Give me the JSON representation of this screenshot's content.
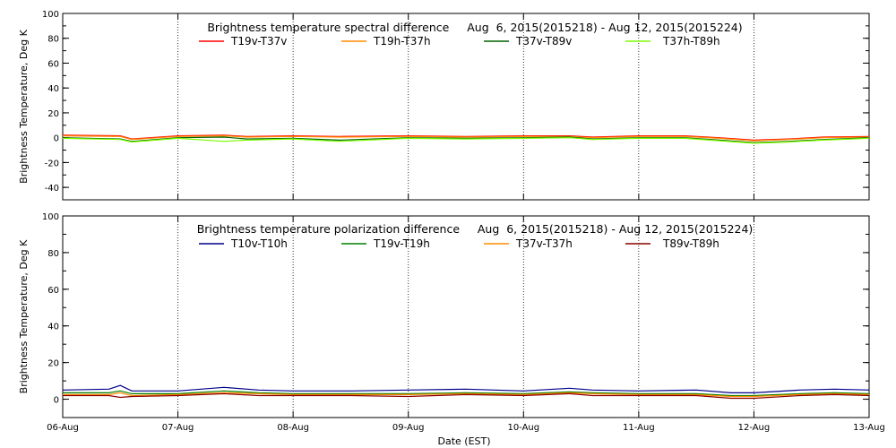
{
  "chart_data": [
    {
      "type": "line",
      "title": "Brightness temperature spectral difference     Aug  6, 2015(2015218) - Aug 12, 2015(2015224)",
      "xlabel": "",
      "ylabel": "Brightness Temperature, Deg K",
      "ylim": [
        -50,
        100
      ],
      "yticks": [
        -40,
        -20,
        0,
        20,
        40,
        60,
        80,
        100
      ],
      "xlim": [
        "2015-08-06",
        "2015-08-13"
      ],
      "xticks": [],
      "grid": "vertical dotted lines at each day",
      "legend": "top, 4 columns",
      "series": [
        {
          "name": "T19v-T37v",
          "color": "#ff0000",
          "x": [
            0,
            0.5,
            0.6,
            1,
            1.4,
            1.6,
            2,
            2.4,
            3,
            3.5,
            4,
            4.4,
            4.6,
            5,
            5.4,
            5.7,
            6,
            6.3,
            6.6,
            7
          ],
          "values": [
            2,
            1.5,
            -1,
            1.5,
            2,
            1,
            1.5,
            1,
            1.5,
            1,
            1.5,
            1.5,
            0.5,
            1.5,
            1.5,
            0,
            -2,
            -1,
            0.5,
            1
          ]
        },
        {
          "name": "T19h-T37h",
          "color": "#ff8c00",
          "x": [
            0,
            0.5,
            0.6,
            1,
            1.4,
            1.6,
            2,
            2.4,
            3,
            3.5,
            4,
            4.4,
            4.6,
            5,
            5.4,
            5.7,
            6,
            6.3,
            6.6,
            7
          ],
          "values": [
            1.5,
            1,
            -1.5,
            1,
            1.5,
            0.5,
            1,
            0.5,
            1,
            0.5,
            1,
            1,
            0,
            1,
            1,
            -0.5,
            -2.5,
            -1.5,
            0,
            0.5
          ]
        },
        {
          "name": "T37v-T89v",
          "color": "#006400",
          "x": [
            0,
            0.5,
            0.6,
            1,
            1.4,
            1.6,
            2,
            2.4,
            3,
            3.5,
            4,
            4.4,
            4.6,
            5,
            5.4,
            5.7,
            6,
            6.3,
            6.6,
            7
          ],
          "values": [
            0,
            -1,
            -3,
            0,
            0.5,
            -1,
            -0.5,
            -2,
            0,
            -0.5,
            0,
            0.5,
            -1,
            0,
            0,
            -2,
            -4,
            -3,
            -1.5,
            0
          ]
        },
        {
          "name": "T37h-T89h",
          "color": "#7cfc00",
          "x": [
            0,
            0.5,
            0.6,
            1,
            1.4,
            1.6,
            2,
            2.4,
            3,
            3.5,
            4,
            4.4,
            4.6,
            5,
            5.4,
            5.7,
            6,
            6.3,
            6.6,
            7
          ],
          "values": [
            -0.5,
            -1.5,
            -3.5,
            -0.5,
            -3,
            -2,
            -1,
            -3,
            -0.5,
            -1,
            -0.5,
            0,
            -1.5,
            -0.5,
            -0.5,
            -2.5,
            -4.5,
            -3.5,
            -2,
            -0.5
          ]
        }
      ]
    },
    {
      "type": "line",
      "title": "Brightness temperature polarization difference     Aug  6, 2015(2015218) - Aug 12, 2015(2015224)",
      "xlabel": "Date (EST)",
      "ylabel": "Brightness Temperature, Deg K",
      "ylim": [
        -10,
        100
      ],
      "yticks": [
        0,
        20,
        40,
        60,
        80,
        100
      ],
      "xlim": [
        "2015-08-06",
        "2015-08-13"
      ],
      "xticks": [
        "06-Aug",
        "07-Aug",
        "08-Aug",
        "09-Aug",
        "10-Aug",
        "11-Aug",
        "12-Aug",
        "13-Aug"
      ],
      "grid": "vertical dotted lines at each day",
      "legend": "top, 4 columns",
      "series": [
        {
          "name": "T10v-T10h",
          "color": "#00008b",
          "x": [
            0,
            0.4,
            0.5,
            0.6,
            1,
            1.4,
            1.7,
            2,
            2.5,
            3,
            3.5,
            4,
            4.4,
            4.6,
            5,
            5.5,
            5.8,
            6,
            6.4,
            6.7,
            7
          ],
          "values": [
            5,
            5.5,
            7.5,
            4.5,
            4.5,
            6.5,
            5,
            4.5,
            4.5,
            5,
            5.5,
            4.5,
            6,
            5,
            4.5,
            5,
            3.5,
            3.5,
            5,
            5.5,
            5
          ]
        },
        {
          "name": "T19v-T19h",
          "color": "#008000",
          "x": [
            0,
            0.4,
            0.5,
            0.6,
            1,
            1.4,
            1.7,
            2,
            2.5,
            3,
            3.5,
            4,
            4.4,
            4.6,
            5,
            5.5,
            5.8,
            6,
            6.4,
            6.7,
            7
          ],
          "values": [
            3.5,
            3.5,
            4.5,
            3,
            3,
            4.5,
            3.5,
            3,
            3,
            3,
            3.5,
            3,
            4,
            3.5,
            3,
            3,
            2,
            2,
            3,
            3.5,
            3
          ]
        },
        {
          "name": "T37v-T37h",
          "color": "#ff8c00",
          "x": [
            0,
            0.4,
            0.5,
            0.6,
            1,
            1.4,
            1.7,
            2,
            2.5,
            3,
            3.5,
            4,
            4.4,
            4.6,
            5,
            5.5,
            5.8,
            6,
            6.4,
            6.7,
            7
          ],
          "values": [
            2.5,
            2.5,
            3.5,
            2,
            2.5,
            3.5,
            3,
            2.5,
            2.5,
            2.5,
            3,
            2.5,
            3.5,
            3,
            2.5,
            2.5,
            1.5,
            1.5,
            2.5,
            3,
            2.5
          ]
        },
        {
          "name": "T89v-T89h",
          "color": "#8b0000",
          "x": [
            0,
            0.4,
            0.5,
            0.6,
            1,
            1.4,
            1.7,
            2,
            2.5,
            3,
            3.5,
            4,
            4.4,
            4.6,
            5,
            5.5,
            5.8,
            6,
            6.4,
            6.7,
            7
          ],
          "values": [
            2,
            2,
            1,
            1.5,
            2,
            3,
            2,
            2,
            2,
            1.5,
            2.5,
            2,
            3,
            2,
            2,
            2,
            0.5,
            0.5,
            2,
            2.5,
            2
          ]
        }
      ]
    }
  ]
}
